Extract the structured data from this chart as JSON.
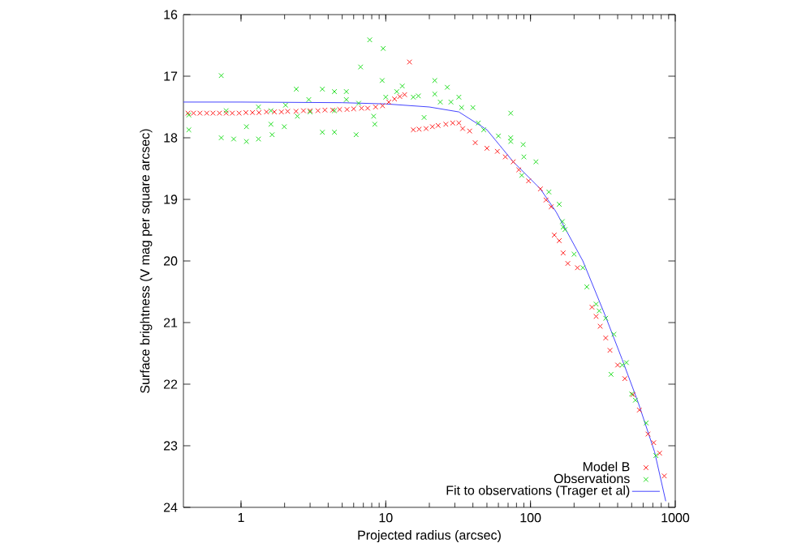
{
  "chart_data": {
    "type": "scatter",
    "xlabel": "Projected radius (arcsec)",
    "ylabel": "Surface brightness (V mag per square arcsec)",
    "log": "x",
    "xlim": [
      0.4,
      1000
    ],
    "xticks": [
      1,
      10,
      100,
      1000
    ],
    "ylim": [
      24,
      16
    ],
    "yticks": [
      16,
      17,
      18,
      19,
      20,
      21,
      22,
      23,
      24
    ],
    "legend": "bottom right",
    "grid": false,
    "series": [
      {
        "name": "Model B",
        "marker": "cross",
        "color": "#ff2020",
        "x": [
          0.43,
          0.47,
          0.52,
          0.58,
          0.64,
          0.71,
          0.79,
          0.87,
          0.97,
          1.08,
          1.2,
          1.33,
          1.5,
          1.7,
          1.9,
          2.1,
          2.4,
          2.7,
          3.0,
          3.4,
          3.8,
          4.3,
          4.8,
          5.4,
          6.0,
          6.8,
          7.5,
          8.5,
          9.5,
          10.5,
          11.5,
          12.5,
          13.5,
          14.6,
          15.5,
          17,
          19,
          21,
          23,
          26,
          29,
          32,
          34,
          38,
          41.5,
          50,
          59,
          67,
          76,
          83,
          97,
          117,
          128,
          139,
          146,
          158,
          168,
          181,
          211,
          266,
          284,
          303,
          331,
          354,
          400,
          448,
          510,
          565,
          648,
          710,
          780,
          840
        ],
        "values": [
          17.6,
          17.6,
          17.6,
          17.6,
          17.6,
          17.6,
          17.6,
          17.6,
          17.6,
          17.59,
          17.59,
          17.59,
          17.58,
          17.58,
          17.58,
          17.57,
          17.57,
          17.56,
          17.56,
          17.56,
          17.55,
          17.55,
          17.54,
          17.54,
          17.53,
          17.52,
          17.52,
          17.5,
          17.48,
          17.42,
          17.37,
          17.33,
          17.3,
          16.77,
          17.87,
          17.86,
          17.85,
          17.82,
          17.8,
          17.78,
          17.76,
          17.76,
          17.85,
          17.89,
          18.08,
          18.17,
          18.22,
          18.31,
          18.39,
          18.52,
          18.7,
          18.83,
          19.01,
          19.12,
          19.58,
          19.67,
          19.87,
          20.04,
          20.11,
          20.75,
          20.9,
          21.06,
          21.25,
          21.45,
          21.69,
          21.91,
          22.17,
          22.42,
          22.81,
          22.95,
          23.12,
          23.49
        ]
      },
      {
        "name": "Observations",
        "marker": "cross",
        "color": "#22dd22",
        "x": [
          0.436,
          0.436,
          0.73,
          0.73,
          0.79,
          0.89,
          1.09,
          1.09,
          1.32,
          1.32,
          1.61,
          1.61,
          1.64,
          1.99,
          2.03,
          2.41,
          2.45,
          2.94,
          3.0,
          3.65,
          3.65,
          4.42,
          4.42,
          4.42,
          5.34,
          5.34,
          6.24,
          6.5,
          6.7,
          7.75,
          8.24,
          8.4,
          9.6,
          9.45,
          10.0,
          11.9,
          13.0,
          15.5,
          16.8,
          18.4,
          21.8,
          21.8,
          23.8,
          26.6,
          28.2,
          32,
          33.4,
          40,
          43.6,
          47.5,
          60,
          73,
          73,
          73,
          89,
          90,
          109,
          87,
          134,
          158,
          166,
          173,
          168,
          200,
          230,
          245,
          284,
          298,
          331,
          377,
          360,
          430,
          460,
          500,
          530,
          630,
          735
        ],
        "values": [
          17.87,
          17.63,
          16.99,
          18.0,
          17.56,
          18.02,
          17.82,
          18.06,
          18.02,
          17.5,
          17.56,
          17.78,
          17.95,
          17.82,
          17.47,
          17.21,
          17.65,
          17.38,
          17.58,
          17.21,
          17.91,
          17.25,
          17.91,
          17.56,
          17.38,
          17.25,
          17.95,
          17.44,
          16.85,
          16.41,
          17.65,
          17.78,
          16.55,
          17.07,
          17.34,
          17.25,
          17.16,
          17.34,
          17.32,
          17.67,
          17.07,
          17.29,
          17.42,
          17.18,
          17.42,
          17.34,
          17.51,
          17.51,
          17.76,
          17.87,
          17.97,
          17.6,
          18.0,
          18.06,
          18.11,
          18.31,
          18.39,
          18.61,
          18.88,
          19.08,
          19.36,
          19.49,
          19.45,
          19.89,
          20.11,
          20.42,
          20.7,
          20.81,
          20.93,
          21.19,
          21.84,
          21.69,
          21.65,
          22.16,
          22.26,
          22.63,
          23.16
        ]
      },
      {
        "name": "Fit to observations (Trager et al)",
        "type": "line",
        "marker": "none",
        "line_style": "solid",
        "color": "#4444ff",
        "x": [
          0.4,
          1,
          5,
          10,
          20,
          32,
          50,
          76,
          117,
          150,
          230,
          330,
          430,
          555,
          720,
          860
        ],
        "values": [
          17.42,
          17.42,
          17.43,
          17.45,
          17.5,
          17.58,
          17.87,
          18.39,
          18.83,
          19.2,
          20.0,
          20.9,
          21.6,
          22.3,
          23.1,
          23.9
        ]
      }
    ]
  }
}
